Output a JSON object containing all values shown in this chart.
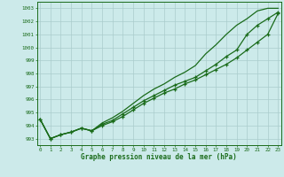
{
  "xlabel": "Graphe pression niveau de la mer (hPa)",
  "background_color": "#cceaea",
  "grid_color": "#aacccc",
  "line_color": "#1a6b1a",
  "hours": [
    0,
    1,
    2,
    3,
    4,
    5,
    6,
    7,
    8,
    9,
    10,
    11,
    12,
    13,
    14,
    15,
    16,
    17,
    18,
    19,
    20,
    21,
    22,
    23
  ],
  "line1": [
    994.5,
    993.0,
    993.3,
    993.5,
    993.8,
    993.6,
    994.0,
    994.3,
    994.7,
    995.2,
    995.7,
    996.1,
    996.5,
    996.8,
    997.2,
    997.5,
    997.9,
    998.3,
    998.7,
    999.2,
    999.8,
    1000.4,
    1001.0,
    1002.6
  ],
  "line2": [
    994.5,
    993.0,
    993.3,
    993.5,
    993.8,
    993.6,
    994.1,
    994.4,
    994.9,
    995.4,
    995.9,
    996.3,
    996.7,
    997.1,
    997.4,
    997.7,
    998.2,
    998.7,
    999.3,
    999.8,
    1001.0,
    1001.7,
    1002.2,
    1002.7
  ],
  "line3": [
    994.5,
    993.0,
    993.3,
    993.5,
    993.8,
    993.6,
    994.2,
    994.6,
    995.1,
    995.7,
    996.3,
    996.8,
    997.2,
    997.7,
    998.1,
    998.6,
    999.5,
    1000.2,
    1001.0,
    1001.7,
    1002.2,
    1002.8,
    1003.0,
    1003.0
  ],
  "ylim": [
    992.5,
    1003.5
  ],
  "yticks": [
    993,
    994,
    995,
    996,
    997,
    998,
    999,
    1000,
    1001,
    1002,
    1003
  ],
  "xlim": [
    -0.3,
    23.3
  ],
  "xticks": [
    0,
    1,
    2,
    3,
    4,
    5,
    6,
    7,
    8,
    9,
    10,
    11,
    12,
    13,
    14,
    15,
    16,
    17,
    18,
    19,
    20,
    21,
    22,
    23
  ]
}
